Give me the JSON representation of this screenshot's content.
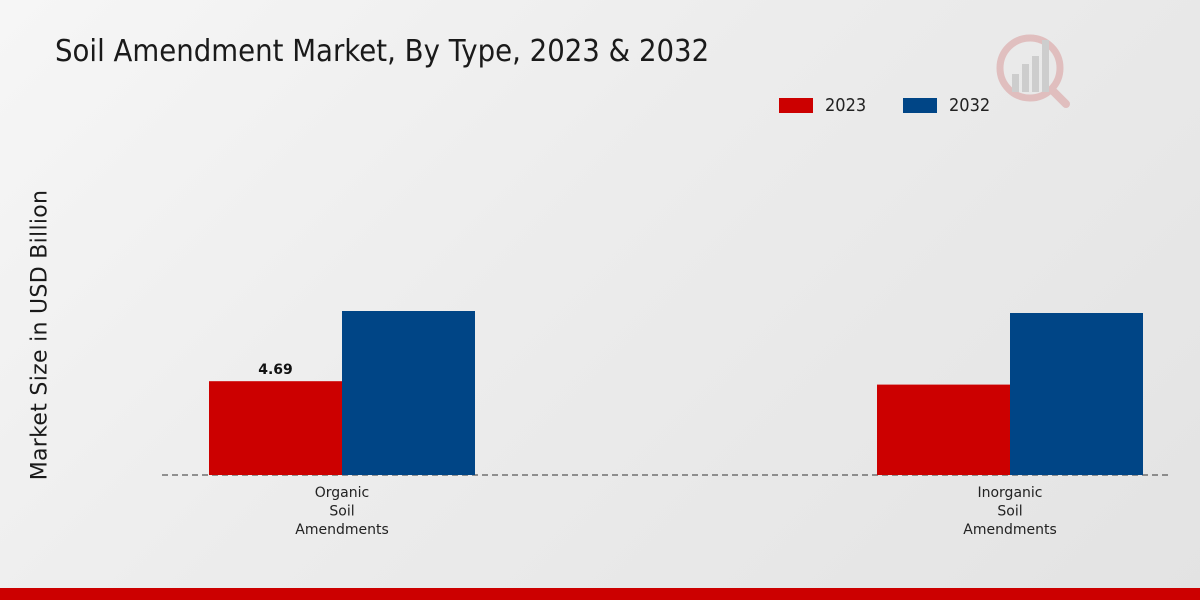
{
  "chart_data": {
    "type": "bar",
    "title": "Soil Amendment Market, By Type, 2023 & 2032",
    "ylabel": "Market Size in USD Billion",
    "xlabel": "",
    "categories": [
      [
        "Organic",
        "Soil",
        "Amendments"
      ],
      [
        "Inorganic",
        "Soil",
        "Amendments"
      ]
    ],
    "series": [
      {
        "name": "2023",
        "color": "#cc0000",
        "values": [
          4.69,
          4.52
        ]
      },
      {
        "name": "2032",
        "color": "#004586",
        "values": [
          8.2,
          8.1
        ]
      }
    ],
    "data_labels": [
      {
        "series": 0,
        "category": 0,
        "text": "4.69"
      }
    ],
    "ylim": [
      0,
      20.5
    ],
    "grid": false,
    "legend_position": "top-right"
  }
}
